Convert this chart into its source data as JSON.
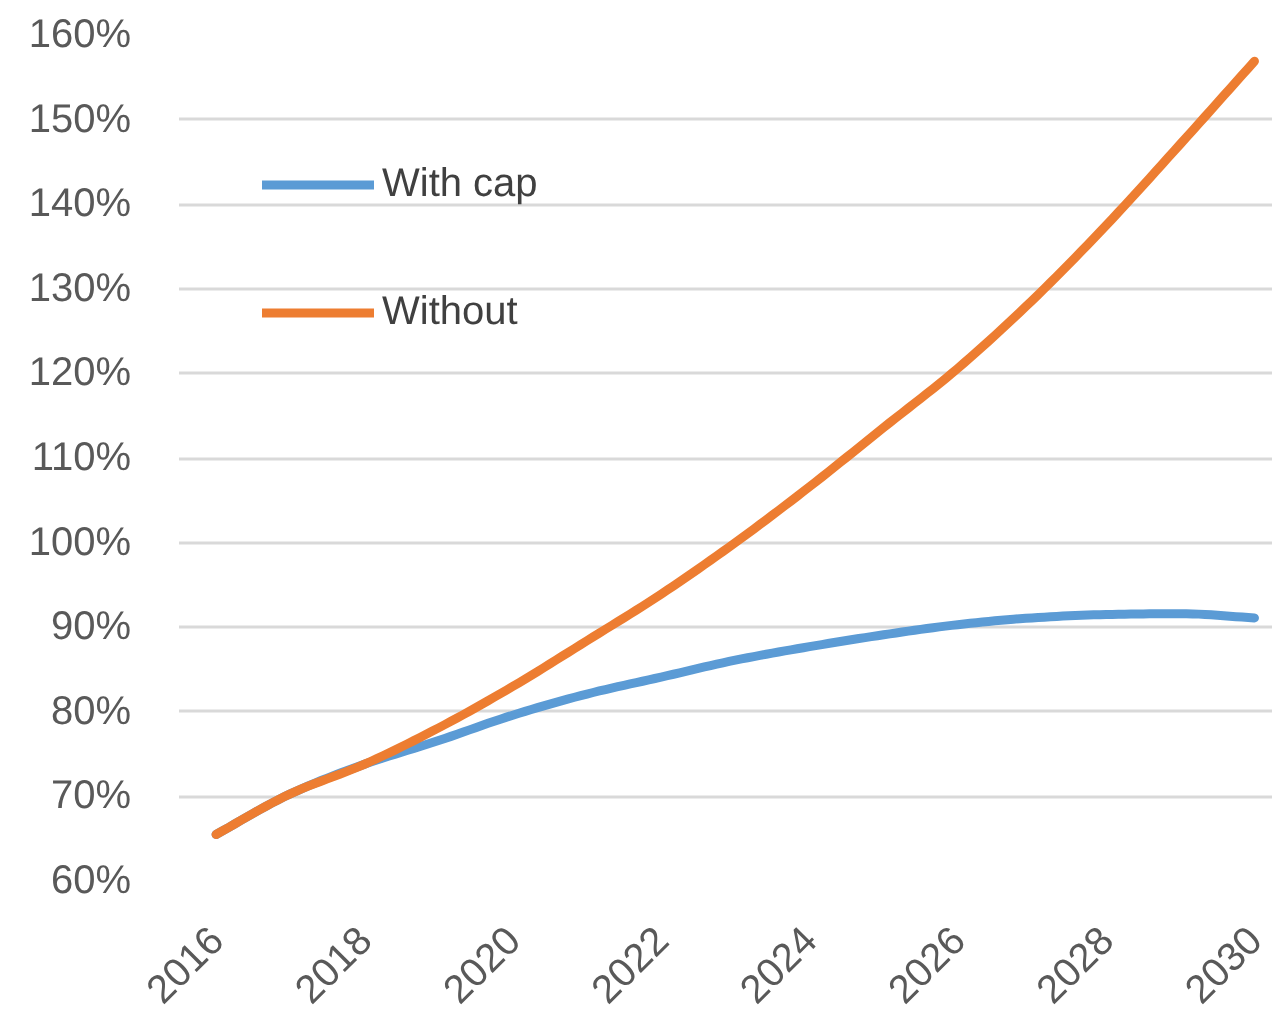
{
  "chart_data": {
    "type": "line",
    "x": [
      2016,
      2017,
      2018,
      2019,
      2020,
      2021,
      2022,
      2023,
      2024,
      2025,
      2026,
      2027,
      2028,
      2029,
      2030
    ],
    "series": [
      {
        "name": "With cap",
        "color": "#5b9bd5",
        "values": [
          65.5,
          70.3,
          73.8,
          76.6,
          79.6,
          82.1,
          84.1,
          86.1,
          87.7,
          89.1,
          90.3,
          91.1,
          91.5,
          91.6,
          91.1
        ]
      },
      {
        "name": "Without",
        "color": "#ed7d31",
        "values": [
          65.5,
          70.3,
          73.8,
          78.1,
          83.0,
          88.4,
          93.9,
          100.0,
          106.6,
          113.6,
          120.6,
          128.6,
          137.5,
          147.1,
          156.9
        ]
      }
    ],
    "xlim": [
      2015.5,
      2030.25
    ],
    "xticks": [
      2016,
      2018,
      2020,
      2022,
      2024,
      2026,
      2028,
      2030
    ],
    "ylim": [
      60,
      160
    ],
    "yticks": [
      {
        "value": 60,
        "label": "60%"
      },
      {
        "value": 70,
        "label": "70%"
      },
      {
        "value": 80,
        "label": "80%"
      },
      {
        "value": 90,
        "label": "90%"
      },
      {
        "value": 100,
        "label": "100%"
      },
      {
        "value": 110,
        "label": "110%"
      },
      {
        "value": 120,
        "label": "120%"
      },
      {
        "value": 130,
        "label": "130%"
      },
      {
        "value": 140,
        "label": "140%"
      },
      {
        "value": 150,
        "label": "150%"
      },
      {
        "value": 160,
        "label": "160%"
      }
    ],
    "grid": "y",
    "legend": "top left"
  }
}
